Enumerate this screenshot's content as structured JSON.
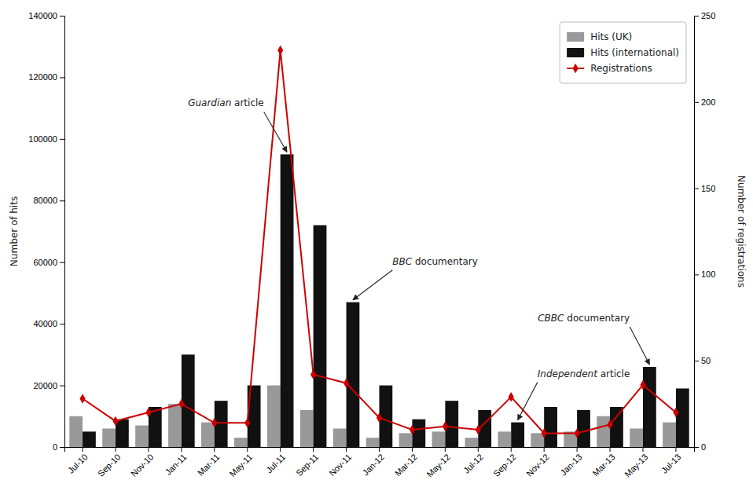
{
  "chart_data": {
    "type": "bar",
    "categories": [
      "Jul-10",
      "Sep-10",
      "Nov-10",
      "Jan-11",
      "Mar-11",
      "May-11",
      "Jul-11",
      "Sep-11",
      "Nov-11",
      "Jan-12",
      "Mar-12",
      "May-12",
      "Jul-12",
      "Sep-12",
      "Nov-12",
      "Jan-13",
      "Mar-13",
      "May-13",
      "Jul-13"
    ],
    "series": [
      {
        "name": "Hits (UK)",
        "type": "bar",
        "color": "#999999",
        "values": [
          10000,
          6000,
          7000,
          14000,
          8000,
          3000,
          20000,
          12000,
          6000,
          3000,
          4500,
          5000,
          3000,
          5000,
          4500,
          5000,
          10000,
          6000,
          8000
        ]
      },
      {
        "name": "Hits (international)",
        "type": "bar",
        "color": "#111111",
        "values": [
          5000,
          9000,
          13000,
          30000,
          15000,
          20000,
          95000,
          72000,
          47000,
          20000,
          9000,
          15000,
          12000,
          8000,
          13000,
          12000,
          13000,
          26000,
          19000
        ]
      },
      {
        "name": "Registrations",
        "type": "line",
        "axis": "y2",
        "color": "#cc0000",
        "marker": "diamond",
        "line_style": "solid",
        "values": [
          28,
          15,
          20,
          25,
          14,
          14,
          230,
          42,
          37,
          17,
          10,
          12,
          10,
          29,
          8,
          8,
          13,
          36,
          20
        ]
      }
    ],
    "ylabel": "Number of hits",
    "y2label": "Number of registrations",
    "ylim": [
      0,
      140000
    ],
    "yticks": [
      0,
      20000,
      40000,
      60000,
      80000,
      100000,
      120000,
      140000
    ],
    "y2lim": [
      0,
      250
    ],
    "y2ticks": [
      0,
      50,
      100,
      150,
      200,
      250
    ],
    "annotations": [
      {
        "text": "Guardian article",
        "x": "Jul-11"
      },
      {
        "text": "BBC documentary",
        "x": "Nov-11"
      },
      {
        "text": "Independent article",
        "x": "Sep-12"
      },
      {
        "text": "CBBC documentary",
        "x": "May-13"
      }
    ],
    "legend": "upper right",
    "grid": false
  }
}
